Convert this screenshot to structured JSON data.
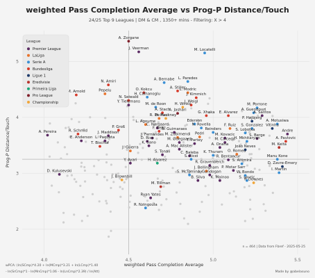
{
  "title": "weighted Pass Completion Average  vs  Prog-P Distance/Touch",
  "subtitle": "24/25 Top 9 Leagues | DM & CM , 1350+ mins - Filtering: X > 4",
  "source": "n = 464 | Data from Fbref - 2025-05-25",
  "credit": "Made by @abelasuno",
  "formula_line1": "wPCA: (ln(SCmp)*4.20 + ln(MCmp)*3.21 + ln(LCmp)*1.40",
  "formula_line2": "- ln(SrCmp)*1 - ln(MnCmp)*1.06 - ln(LnCmp)*2.39) / ln(Att)",
  "colors": {
    "background": "#f4f4f4",
    "grey": "#cfcfcf",
    "Premier League": "#5b2b63",
    "LaLiga": "#e8732b",
    "Serie A": "#3a8fd4",
    "Bundesliga": "#d63a2a",
    "Ligue 1": "#1f3b6b",
    "Eredivisie": "#b7332c",
    "Primeira Liga": "#1aa878",
    "Pro League": "#7f1f2a",
    "Championship": "#f0a63a"
  },
  "chart_data": {
    "type": "scatter",
    "title": "weighted Pass Completion Average  vs  Prog-P Distance/Touch",
    "xlabel": "weighted Pass Completion Average",
    "ylabel": "Prog-P Distance/Touch",
    "xlim": [
      3.87,
      5.57
    ],
    "ylim": [
      1.55,
      5.55
    ],
    "xticks": [
      4.0,
      4.5,
      5.0,
      5.5
    ],
    "yticks": [
      2,
      3,
      4,
      5
    ],
    "grid": true,
    "vline": 4.5,
    "hline": 3.25,
    "legend": {
      "title": "League",
      "placement": "top-left",
      "entries": [
        "Premier League",
        "LaLiga",
        "Serie A",
        "Bundesliga",
        "Ligue 1",
        "Eredivisie",
        "Primeira Liga",
        "Pro League",
        "Championship"
      ]
    },
    "points": [
      {
        "x": 4.5,
        "y": 5.36,
        "label": "A. Zorgane",
        "league": "Pro League"
      },
      {
        "x": 4.56,
        "y": 5.17,
        "label": "J. Veerman",
        "league": "Premier League"
      },
      {
        "x": 4.95,
        "y": 5.15,
        "label": "M. Locatelli",
        "league": "Serie A"
      },
      {
        "x": 4.38,
        "y": 4.58,
        "label": "N. Amiri",
        "league": "Bundesliga"
      },
      {
        "x": 4.71,
        "y": 4.62,
        "label": "A. Bernabe",
        "league": "Serie A"
      },
      {
        "x": 4.85,
        "y": 4.64,
        "label": "L. Paredes",
        "league": "Serie A"
      },
      {
        "x": 4.79,
        "y": 4.47,
        "label": "A. Stiller",
        "league": "Bundesliga"
      },
      {
        "x": 4.85,
        "y": 4.44,
        "label": "L. Modric",
        "league": "LaLiga"
      },
      {
        "x": 4.59,
        "y": 4.44,
        "label": "O. Kokcu",
        "league": "Eredivisie"
      },
      {
        "x": 4.36,
        "y": 4.42,
        "label": "Pepelu",
        "league": "LaLiga"
      },
      {
        "x": 4.19,
        "y": 4.4,
        "label": "M. Arnold",
        "league": "Bundesliga"
      },
      {
        "x": 4.61,
        "y": 4.36,
        "label": "H. Calhanoglu",
        "league": "Serie A"
      },
      {
        "x": 4.9,
        "y": 4.35,
        "label": "J. Kimmich",
        "league": "Bundesliga"
      },
      {
        "x": 4.5,
        "y": 4.3,
        "label": "N. Seiwald",
        "league": "Bundesliga"
      },
      {
        "x": 4.87,
        "y": 4.22,
        "label": "J. Weigl",
        "league": "Bundesliga"
      },
      {
        "x": 4.66,
        "y": 4.18,
        "label": "M. de Roon",
        "league": "Serie A"
      },
      {
        "x": 4.82,
        "y": 4.18,
        "label": "H. Winks",
        "league": "Championship"
      },
      {
        "x": 4.5,
        "y": 4.22,
        "label": "Y. Tielemans",
        "league": "Premier League"
      },
      {
        "x": 5.26,
        "y": 4.17,
        "label": "M. Porrone",
        "league": "Serie A"
      },
      {
        "x": 4.7,
        "y": 4.08,
        "label": "A. Stach",
        "league": "Bundesliga"
      },
      {
        "x": 4.79,
        "y": 4.07,
        "label": "A. Jashari",
        "league": "Pro League"
      },
      {
        "x": 5.24,
        "y": 4.08,
        "label": "A. Guendouzi",
        "league": "Serie A"
      },
      {
        "x": 4.96,
        "y": 4.03,
        "label": "G. Xhaka",
        "league": "Bundesliga"
      },
      {
        "x": 5.09,
        "y": 4.03,
        "label": "E. Alvarez",
        "league": "Bundesliga"
      },
      {
        "x": 5.29,
        "y": 4.03,
        "label": "A. Santos",
        "league": "Premier League"
      },
      {
        "x": 4.68,
        "y": 3.98,
        "label": "R. De Paul",
        "league": "LaLiga"
      },
      {
        "x": 4.72,
        "y": 3.98,
        "label": "H. Hackney",
        "league": "Championship"
      },
      {
        "x": 5.23,
        "y": 3.93,
        "label": "P. Højbjerg",
        "league": "Ligue 1"
      },
      {
        "x": 4.6,
        "y": 3.87,
        "label": "L. Agoume",
        "league": "LaLiga"
      },
      {
        "x": 4.89,
        "y": 3.88,
        "label": "Ederson",
        "league": "Serie A"
      },
      {
        "x": 5.38,
        "y": 3.88,
        "label": "A. Motusiwa",
        "league": "Serie A"
      },
      {
        "x": 4.67,
        "y": 3.81,
        "label": "C. Nørgaard",
        "league": "Premier League"
      },
      {
        "x": 4.93,
        "y": 3.81,
        "label": "N. Rovella",
        "league": "Serie A"
      },
      {
        "x": 5.1,
        "y": 3.8,
        "label": "F. Ruiz",
        "league": "LaLiga"
      },
      {
        "x": 5.23,
        "y": 3.8,
        "label": "S. Gonzalez",
        "league": "Serie A"
      },
      {
        "x": 5.35,
        "y": 3.8,
        "label": "Vitinha",
        "league": "Ligue 1"
      },
      {
        "x": 4.44,
        "y": 3.77,
        "label": "P. Groß",
        "league": "Bundesliga"
      },
      {
        "x": 4.68,
        "y": 3.75,
        "label": "F. Reltz",
        "league": "Bundesliga"
      },
      {
        "x": 4.77,
        "y": 3.73,
        "label": "B. Guimaraes",
        "league": "Premier League"
      },
      {
        "x": 5.0,
        "y": 3.73,
        "label": "Reinders",
        "league": "Serie A"
      },
      {
        "x": 5.19,
        "y": 3.72,
        "label": "S. Lobotka",
        "league": "Serie A"
      },
      {
        "x": 5.44,
        "y": 3.7,
        "label": "Andre",
        "league": "Premier League"
      },
      {
        "x": 4.2,
        "y": 3.7,
        "label": "R. Schmid",
        "league": "Bundesliga"
      },
      {
        "x": 4.38,
        "y": 3.67,
        "label": "J. Maddison",
        "league": "Premier League"
      },
      {
        "x": 4.64,
        "y": 3.63,
        "label": "J. Fernandes",
        "league": "Premier League"
      },
      {
        "x": 4.79,
        "y": 3.64,
        "label": "M. Zubimendi",
        "league": "LaLiga"
      },
      {
        "x": 4.92,
        "y": 3.65,
        "label": "Pedri",
        "league": "LaLiga"
      },
      {
        "x": 5.07,
        "y": 3.63,
        "label": "M. Kovacic",
        "league": "Premier League"
      },
      {
        "x": 5.26,
        "y": 3.62,
        "label": "S. Berge",
        "league": "Premier League"
      },
      {
        "x": 4.02,
        "y": 3.68,
        "label": "A. Pereira",
        "league": "Premier League"
      },
      {
        "x": 4.22,
        "y": 3.58,
        "label": "E. Anderson",
        "league": "Premier League"
      },
      {
        "x": 4.36,
        "y": 3.58,
        "label": "L. Paqueta",
        "league": "Premier League"
      },
      {
        "x": 4.61,
        "y": 3.57,
        "label": "D. Rice",
        "league": "Premier League"
      },
      {
        "x": 4.8,
        "y": 3.55,
        "label": "M. Ødegaard",
        "league": "Premier League"
      },
      {
        "x": 4.89,
        "y": 3.53,
        "label": "T. Partey",
        "league": "Premier League"
      },
      {
        "x": 5.07,
        "y": 3.55,
        "label": "M. Caicedo",
        "league": "Premier League"
      },
      {
        "x": 5.2,
        "y": 3.57,
        "label": "H. Mkhitaryan",
        "league": "Serie A"
      },
      {
        "x": 5.43,
        "y": 3.57,
        "label": "A. Pavlovic",
        "league": "Bundesliga"
      },
      {
        "x": 4.33,
        "y": 3.48,
        "label": "T. Bischof",
        "league": "Bundesliga"
      },
      {
        "x": 4.62,
        "y": 3.49,
        "label": "K. Sano",
        "league": "Premier League"
      },
      {
        "x": 4.8,
        "y": 3.43,
        "label": "A. Mac Allister",
        "league": "Premier League"
      },
      {
        "x": 5.04,
        "y": 3.46,
        "label": "A. Onana",
        "league": "Premier League"
      },
      {
        "x": 5.19,
        "y": 3.42,
        "label": "João Neves",
        "league": "Ligue 1"
      },
      {
        "x": 5.39,
        "y": 3.46,
        "label": "M. Keita",
        "league": "Eredivisie"
      },
      {
        "x": 4.51,
        "y": 3.4,
        "label": "J. Guerra",
        "league": "LaLiga"
      },
      {
        "x": 4.7,
        "y": 3.33,
        "label": "S. Tonali",
        "league": "Premier League"
      },
      {
        "x": 4.86,
        "y": 3.31,
        "label": "C. Baleba",
        "league": "Premier League"
      },
      {
        "x": 5.0,
        "y": 3.32,
        "label": "K. Thuram",
        "league": "Serie A"
      },
      {
        "x": 5.14,
        "y": 3.34,
        "label": "O. Romeu",
        "league": "LaLiga"
      },
      {
        "x": 4.87,
        "y": 3.25,
        "label": "S. Ricci",
        "league": "Serie A"
      },
      {
        "x": 5.09,
        "y": 3.24,
        "label": "R. Bentancur",
        "league": "Premier League"
      },
      {
        "x": 5.38,
        "y": 3.25,
        "label": "Manu Kone",
        "league": "Serie A"
      },
      {
        "x": 4.51,
        "y": 3.18,
        "label": "Y. Ayari",
        "league": "Premier League"
      },
      {
        "x": 4.67,
        "y": 3.18,
        "label": "H. Alvarez",
        "league": "Primeira Liga"
      },
      {
        "x": 4.98,
        "y": 3.14,
        "label": "R. Gravenberch",
        "league": "Premier League"
      },
      {
        "x": 5.17,
        "y": 3.17,
        "label": "S. Altimira",
        "league": "Serie A"
      },
      {
        "x": 5.41,
        "y": 3.12,
        "label": "D. Zavre-Emery",
        "league": "Ligue 1"
      },
      {
        "x": 4.96,
        "y": 3.04,
        "label": "J. Bellingham",
        "league": "LaLiga"
      },
      {
        "x": 5.12,
        "y": 3.05,
        "label": "P. Motar Sarr",
        "league": "Premier League"
      },
      {
        "x": 5.39,
        "y": 3.01,
        "label": "I. Martin",
        "league": "Serie A"
      },
      {
        "x": 4.09,
        "y": 2.98,
        "label": "D. Kulusevski",
        "league": "Premier League"
      },
      {
        "x": 4.86,
        "y": 2.97,
        "label": "S. McTominay",
        "league": "Serie A"
      },
      {
        "x": 4.98,
        "y": 2.97,
        "label": "I. Gundogan",
        "league": "Premier League"
      },
      {
        "x": 5.19,
        "y": 2.96,
        "label": "W. Bondo",
        "league": "Serie A"
      },
      {
        "x": 4.46,
        "y": 2.88,
        "label": "J. Brownhill",
        "league": "Championship"
      },
      {
        "x": 4.91,
        "y": 2.87,
        "label": "B. Silva",
        "league": "Premier League"
      },
      {
        "x": 5.04,
        "y": 2.87,
        "label": "K. Mainoo",
        "league": "Premier League"
      },
      {
        "x": 5.2,
        "y": 2.87,
        "label": "S. Lovric",
        "league": "Serie A"
      },
      {
        "x": 5.24,
        "y": 2.83,
        "label": "F. Downes",
        "league": "Championship"
      },
      {
        "x": 4.69,
        "y": 2.76,
        "label": "M. Tillman",
        "league": "Eredivisie"
      },
      {
        "x": 4.63,
        "y": 2.56,
        "label": "Ryan Yates",
        "league": "Premier League"
      },
      {
        "x": 4.6,
        "y": 2.38,
        "label": "R. Nzingoula",
        "league": "Serie A"
      }
    ]
  }
}
